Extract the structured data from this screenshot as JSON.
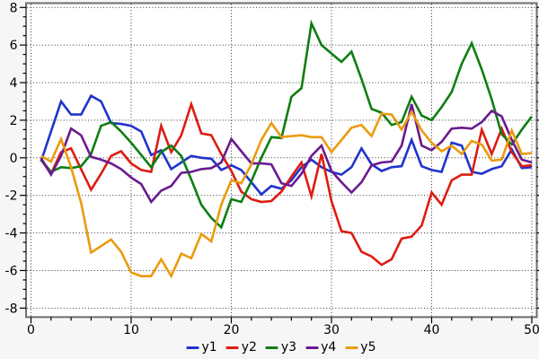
{
  "window": {
    "background_color": "#f6f6f6",
    "plot_background_color": "#ffffff",
    "frame_color": "#6e6e6e",
    "grid_color": "#1a1a1a",
    "tick_color": "#000000",
    "text_color": "#000000"
  },
  "chart_data": {
    "type": "line",
    "title": "",
    "xlabel": "",
    "ylabel": "",
    "xlim": [
      0,
      50
    ],
    "ylim": [
      -8,
      8
    ],
    "x_major_ticks": [
      0,
      10,
      20,
      30,
      40,
      50
    ],
    "y_major_ticks": [
      -8,
      -6,
      -4,
      -2,
      0,
      2,
      4,
      6,
      8
    ],
    "x_minor_step": 2,
    "y_minor_step": 0.5,
    "grid": "dotted at major ticks",
    "legend_position": "bottom-center",
    "x_start": 1,
    "series": [
      {
        "name": "y1",
        "color": "#2033cc",
        "values": [
          -0.2,
          1.4,
          3.0,
          2.3,
          2.3,
          3.3,
          3.0,
          1.85,
          1.8,
          1.7,
          1.4,
          0.15,
          0.4,
          -0.6,
          -0.25,
          0.1,
          0.0,
          -0.05,
          -0.65,
          -0.4,
          -0.65,
          -1.3,
          -1.95,
          -1.5,
          -1.65,
          -1.2,
          -0.5,
          -0.1,
          -0.5,
          -0.75,
          -0.9,
          -0.5,
          0.5,
          -0.35,
          -0.7,
          -0.5,
          -0.45,
          0.95,
          -0.45,
          -0.65,
          -0.75,
          0.8,
          0.65,
          -0.75,
          -0.85,
          -0.6,
          -0.45,
          0.45,
          -0.55,
          -0.5
        ]
      },
      {
        "name": "y2",
        "color": "#dd1c10",
        "values": [
          -0.1,
          -0.85,
          0.3,
          0.5,
          -0.6,
          -1.7,
          -0.85,
          0.1,
          0.35,
          -0.3,
          -0.65,
          -0.75,
          1.7,
          0.3,
          1.2,
          2.85,
          1.3,
          1.2,
          0.2,
          -0.7,
          -1.8,
          -2.2,
          -2.35,
          -2.3,
          -1.8,
          -1.0,
          -0.25,
          -2.05,
          0.2,
          -2.3,
          -3.9,
          -4.0,
          -5.0,
          -5.25,
          -5.7,
          -5.4,
          -4.3,
          -4.2,
          -3.6,
          -1.85,
          -2.5,
          -1.2,
          -0.9,
          -0.9,
          1.5,
          0.2,
          1.55,
          0.3,
          -0.45,
          -0.4
        ]
      },
      {
        "name": "y3",
        "color": "#0e7e12",
        "values": [
          -0.1,
          -0.75,
          -0.5,
          -0.55,
          -0.45,
          0.2,
          1.7,
          1.9,
          1.4,
          0.8,
          0.15,
          -0.5,
          0.3,
          0.65,
          0.1,
          -1.15,
          -2.5,
          -3.2,
          -3.7,
          -2.2,
          -2.35,
          -1.25,
          0.0,
          1.1,
          1.05,
          3.25,
          3.7,
          7.15,
          6.0,
          5.55,
          5.1,
          5.65,
          4.2,
          2.6,
          2.4,
          1.75,
          1.9,
          3.25,
          2.25,
          2.0,
          2.7,
          3.5,
          5.0,
          6.1,
          4.7,
          3.1,
          1.25,
          0.7,
          1.5,
          2.2
        ]
      },
      {
        "name": "y4",
        "color": "#6a1b8f",
        "values": [
          0.0,
          -0.9,
          0.1,
          1.55,
          1.2,
          0.05,
          -0.1,
          -0.3,
          -0.6,
          -1.05,
          -1.4,
          -2.35,
          -1.75,
          -1.5,
          -0.8,
          -0.75,
          -0.6,
          -0.55,
          -0.25,
          1.0,
          0.35,
          -0.3,
          -0.3,
          -0.35,
          -1.35,
          -1.5,
          -0.85,
          0.1,
          0.65,
          -0.7,
          -1.3,
          -1.85,
          -1.3,
          -0.4,
          -0.25,
          -0.2,
          0.65,
          2.85,
          0.65,
          0.4,
          0.85,
          1.55,
          1.6,
          1.55,
          1.9,
          2.5,
          2.2,
          0.95,
          -0.1,
          -0.25
        ]
      },
      {
        "name": "y5",
        "color": "#ea9b0e",
        "values": [
          0.1,
          -0.2,
          1.0,
          -0.5,
          -2.4,
          -5.05,
          -4.7,
          -4.35,
          -5.0,
          -6.1,
          -6.3,
          -6.3,
          -5.4,
          -6.3,
          -5.1,
          -5.35,
          -4.05,
          -4.45,
          -2.5,
          -1.2,
          -1.35,
          -0.35,
          0.95,
          1.85,
          1.1,
          1.15,
          1.2,
          1.1,
          1.1,
          0.3,
          0.95,
          1.6,
          1.75,
          1.15,
          2.35,
          2.3,
          1.5,
          2.45,
          1.45,
          0.8,
          0.35,
          0.65,
          0.2,
          0.9,
          0.7,
          -0.15,
          -0.1,
          1.45,
          0.2,
          0.25
        ]
      }
    ]
  }
}
